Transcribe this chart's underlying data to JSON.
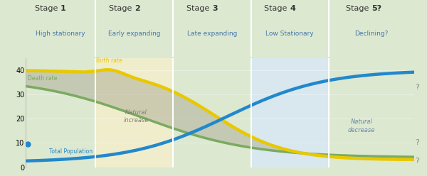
{
  "stages": [
    "Stage 1",
    "Stage 2",
    "Stage 3",
    "Stage 4",
    "Stage 5?"
  ],
  "subtitles": [
    "High stationary",
    "Early expanding",
    "Late expanding",
    "Low Stationary",
    "Declining?"
  ],
  "stage_boundaries": [
    0.0,
    0.18,
    0.38,
    0.58,
    0.78,
    1.0
  ],
  "stage_bg_colors": [
    "#dce8d0",
    "#f0edcc",
    "#dce8d0",
    "#d8e8ee",
    "#dce8d0"
  ],
  "ylim": [
    0,
    45
  ],
  "yticks": [
    0,
    10,
    20,
    30,
    40
  ],
  "birth_rate_color": "#e8c800",
  "death_rate_color": "#7aaa60",
  "population_color": "#2288cc",
  "birth_label": "Birth rate",
  "death_label": "Death rate",
  "pop_label": "Total Population",
  "natural_increase_label": "Natural\nincrease",
  "natural_decrease_label": "Natural\ndecrease",
  "question_mark_color": "#888888",
  "stage_title_color": "#333333",
  "stage_subtitle_color": "#4477aa",
  "fill_increase_color": "#b0b09a",
  "fill_decrease_color": "#88aacc",
  "fill_pop_color": "#99bbdd"
}
